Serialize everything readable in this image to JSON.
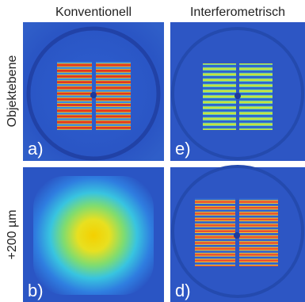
{
  "columns": [
    "Konventionell",
    "Interferometrisch"
  ],
  "rows": [
    "Objektebene",
    "+200 µm"
  ],
  "panels": [
    {
      "label": "a)"
    },
    {
      "label": "e)"
    },
    {
      "label": "b)"
    },
    {
      "label": "d)"
    }
  ]
}
